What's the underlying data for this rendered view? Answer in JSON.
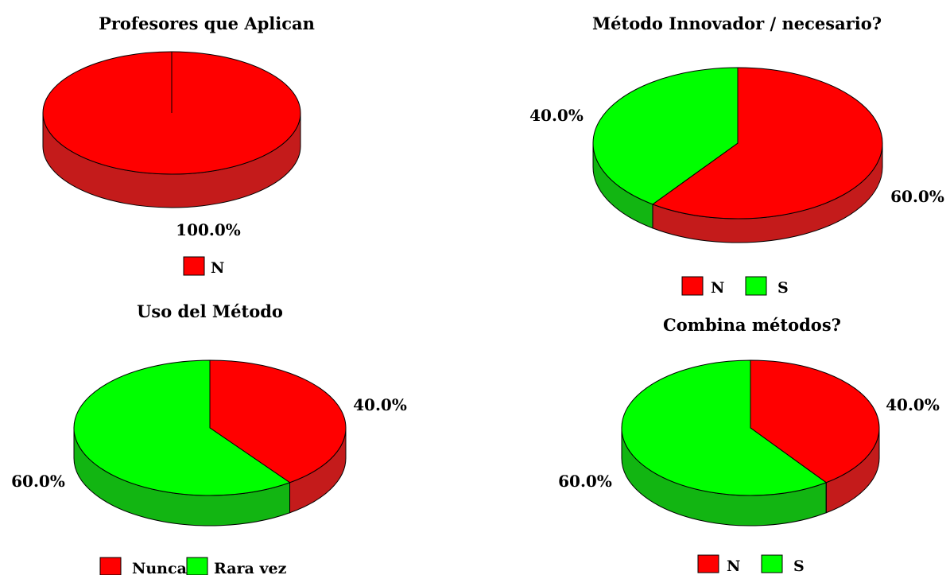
{
  "colors": {
    "N": "#ff0000",
    "S": "#00ff00",
    "N_side": "#c41b1b",
    "S_side": "#12b512",
    "edge": "#000000"
  },
  "chart_data": [
    {
      "type": "pie",
      "title": "Profesores que Aplican",
      "slices": [
        {
          "label": "N",
          "value": 100.0,
          "display": "100.0%"
        }
      ],
      "legend": [
        "N"
      ],
      "legend_position": "bottom"
    },
    {
      "type": "pie",
      "title": "Método Innovador / necesario?",
      "slices": [
        {
          "label": "N",
          "value": 60.0,
          "display": "60.0%"
        },
        {
          "label": "S",
          "value": 40.0,
          "display": "40.0%"
        }
      ],
      "legend": [
        "N",
        "S"
      ],
      "legend_position": "bottom"
    },
    {
      "type": "pie",
      "title": "Uso del Método",
      "slices": [
        {
          "label": "Nunca",
          "value": 40.0,
          "display": "40.0%"
        },
        {
          "label": "Rara vez",
          "value": 60.0,
          "display": "60.0%"
        }
      ],
      "legend": [
        "Nunca",
        "Rara vez"
      ],
      "legend_position": "bottom"
    },
    {
      "type": "pie",
      "title": "Combina métodos?",
      "slices": [
        {
          "label": "N",
          "value": 40.0,
          "display": "40.0%"
        },
        {
          "label": "S",
          "value": 60.0,
          "display": "60.0%"
        }
      ],
      "legend": [
        "N",
        "S"
      ],
      "legend_position": "bottom"
    }
  ]
}
